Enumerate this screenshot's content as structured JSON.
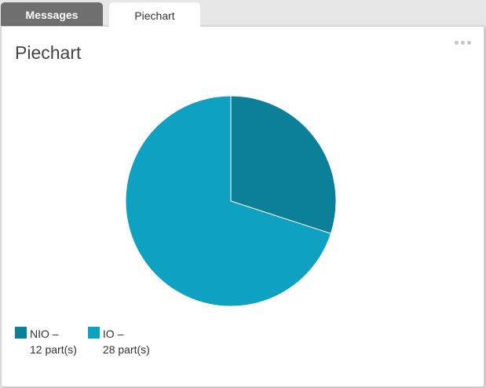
{
  "tabs": [
    {
      "label": "Messages",
      "active": false
    },
    {
      "label": "Piechart",
      "active": true
    }
  ],
  "panel": {
    "title": "Piechart",
    "menu_icon": "more-horizontal-icon"
  },
  "colors": {
    "nio": "#0c8099",
    "io": "#0ea1c2"
  },
  "chart_data": {
    "type": "pie",
    "title": "",
    "slices": [
      {
        "name": "NIO",
        "value": 12,
        "label": "NIO –",
        "sub": "12 part(s)",
        "color": "#0c8099"
      },
      {
        "name": "IO",
        "value": 28,
        "label": "IO –",
        "sub": "28 part(s)",
        "color": "#0ea1c2"
      }
    ],
    "legend_position": "bottom-left"
  }
}
